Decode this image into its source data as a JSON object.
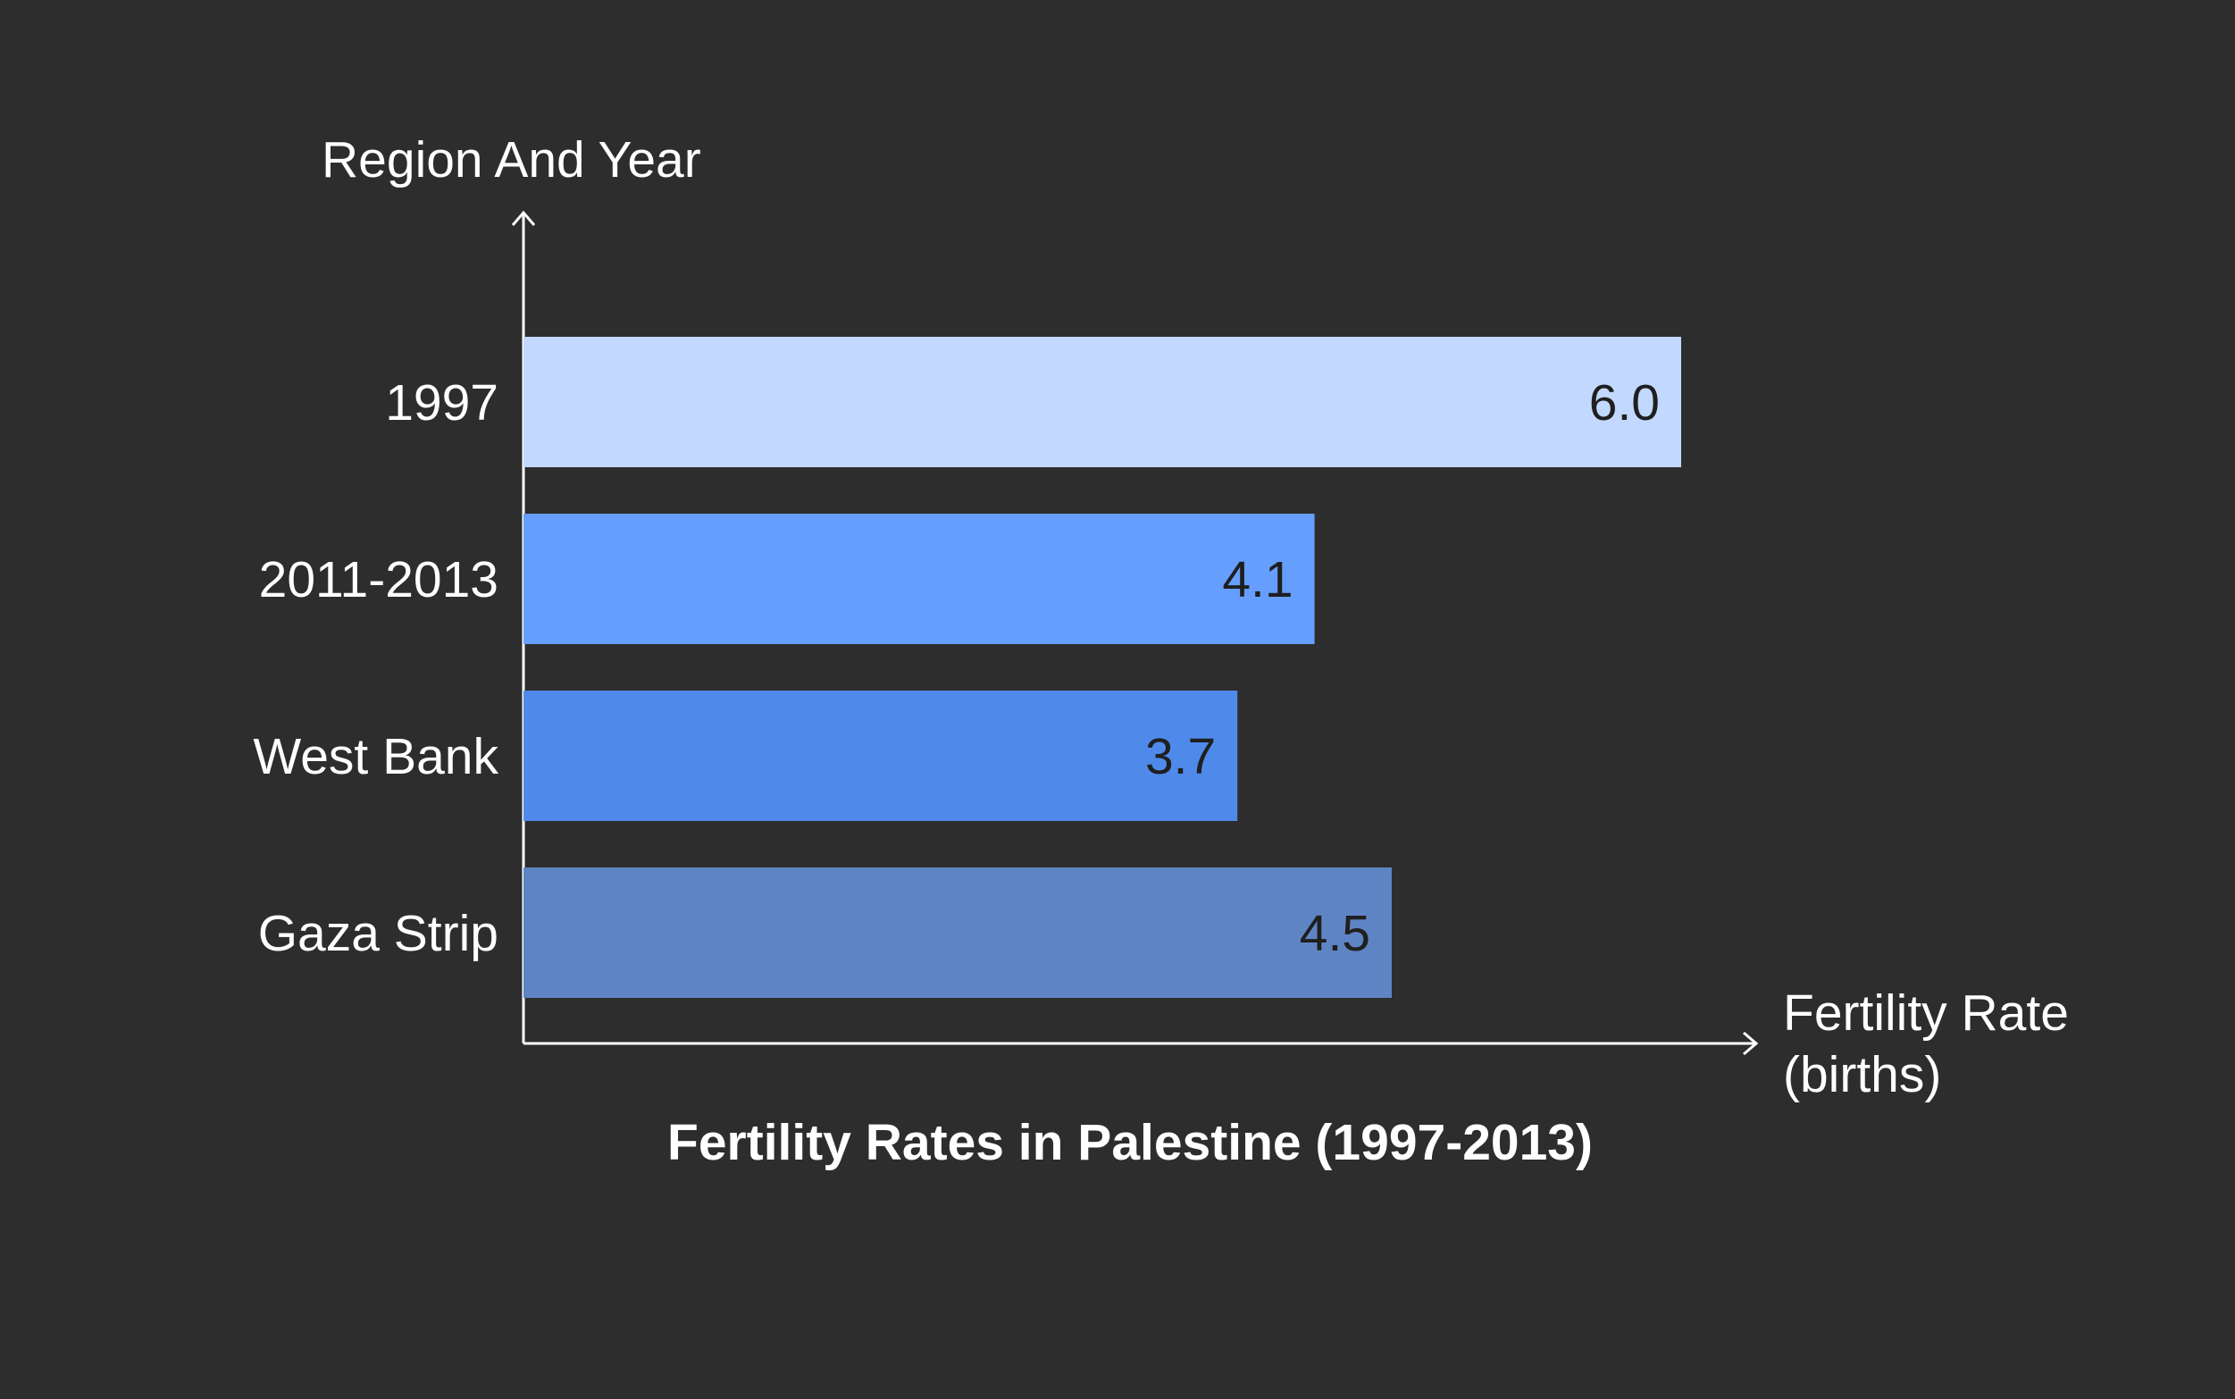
{
  "chart_data": {
    "type": "bar",
    "orientation": "horizontal",
    "title": "Fertility Rates in Palestine (1997-2013)",
    "ylabel": "Region And Year",
    "xlabel_lines": [
      "Fertility Rate",
      "(births)"
    ],
    "categories": [
      "1997",
      "2011-2013",
      "West Bank",
      "Gaza Strip"
    ],
    "values": [
      6.0,
      4.1,
      3.7,
      4.5
    ],
    "value_labels": [
      "6.0",
      "4.1",
      "3.7",
      "4.5"
    ],
    "bar_colors": [
      "#c2d8ff",
      "#669efe",
      "#4f8aeb",
      "#5f84c4"
    ],
    "xlim": [
      0,
      6.0
    ],
    "grid": false,
    "legend": false
  }
}
